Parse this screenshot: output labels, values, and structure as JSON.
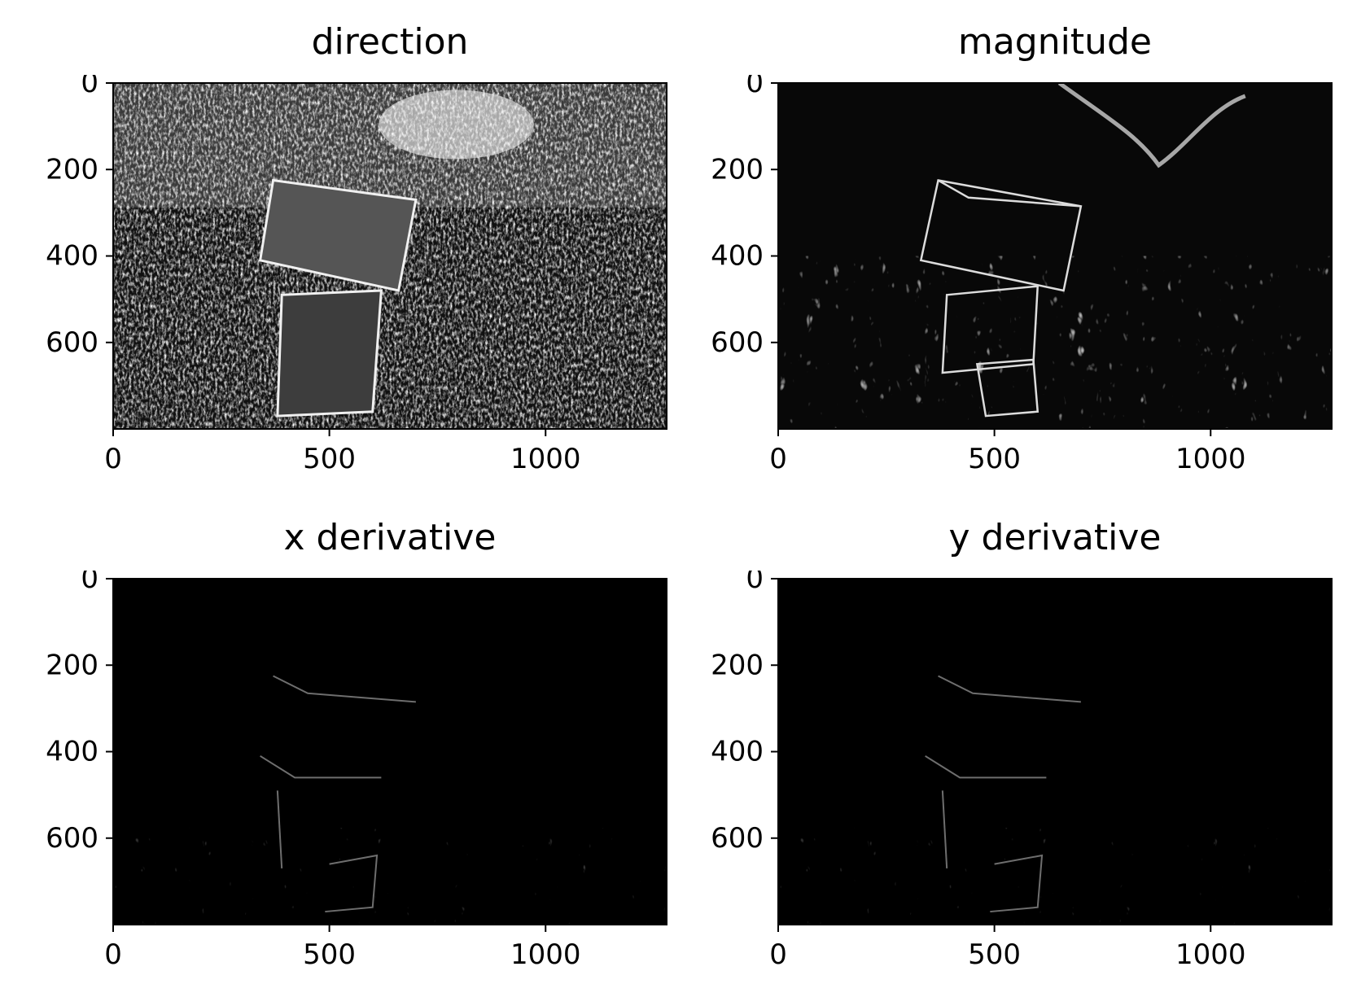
{
  "chart_data": [
    {
      "type": "image",
      "title": "direction",
      "xlim": [
        0,
        1280
      ],
      "ylim": [
        800,
        0
      ],
      "xticks": [
        0,
        500,
        1000
      ],
      "yticks": [
        0,
        200,
        400,
        600
      ],
      "xlabel": "",
      "ylabel": "",
      "tone": "bright-texture"
    },
    {
      "type": "image",
      "title": "magnitude",
      "xlim": [
        0,
        1280
      ],
      "ylim": [
        800,
        0
      ],
      "xticks": [
        0,
        500,
        1000
      ],
      "yticks": [
        0,
        200,
        400,
        600
      ],
      "xlabel": "",
      "ylabel": "",
      "tone": "edge-outline"
    },
    {
      "type": "image",
      "title": "x derivative",
      "xlim": [
        0,
        1280
      ],
      "ylim": [
        800,
        0
      ],
      "xticks": [
        0,
        500,
        1000
      ],
      "yticks": [
        0,
        200,
        400,
        600
      ],
      "xlabel": "",
      "ylabel": "",
      "tone": "dark-edges"
    },
    {
      "type": "image",
      "title": "y derivative",
      "xlim": [
        0,
        1280
      ],
      "ylim": [
        800,
        0
      ],
      "xticks": [
        0,
        500,
        1000
      ],
      "yticks": [
        0,
        200,
        400,
        600
      ],
      "xlabel": "",
      "ylabel": "",
      "tone": "dark-edges"
    }
  ]
}
